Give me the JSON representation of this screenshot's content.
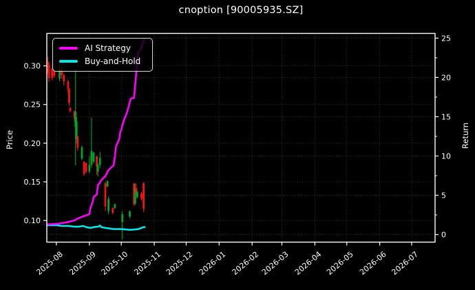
{
  "title": "cnoption [90005935.SZ]",
  "axes": {
    "ylabel_left": "Price",
    "ylabel_right": "Return",
    "x_tick_labels": [
      "2025-08",
      "2025-09",
      "2025-10",
      "2025-11",
      "2025-12",
      "2026-01",
      "2026-02",
      "2026-03",
      "2026-04",
      "2026-05",
      "2026-06",
      "2026-07"
    ],
    "price_tick_labels": [
      "0.30",
      "0.25",
      "0.20",
      "0.15",
      "0.10"
    ],
    "return_tick_labels": [
      "25",
      "20",
      "15",
      "10",
      "5",
      "0"
    ]
  },
  "legend": {
    "items": [
      {
        "label": "AI Strategy",
        "color": "#ff00ff"
      },
      {
        "label": "Buy-and-Hold",
        "color": "#00e8e8"
      }
    ]
  },
  "chart_data": {
    "type": "candlestick+line",
    "title": "cnoption [90005935.SZ]",
    "ylabel_left": "Price",
    "ylabel_right": "Return",
    "grid": "dotted",
    "legend_position": "upper-left",
    "xlim": [
      "2025-07-23",
      "2026-07-23"
    ],
    "x_ticks": [
      "2025-08-01",
      "2025-09-01",
      "2025-10-01",
      "2025-11-01",
      "2025-12-01",
      "2026-01-01",
      "2026-02-01",
      "2026-03-01",
      "2026-04-01",
      "2026-05-01",
      "2026-06-01",
      "2026-07-01"
    ],
    "price_ylim": [
      0.072,
      0.342
    ],
    "price_ticks": [
      0.3,
      0.25,
      0.2,
      0.15,
      0.1
    ],
    "return_ylim": [
      -0.96,
      25.6
    ],
    "return_ticks": [
      25,
      20,
      15,
      10,
      5,
      0
    ],
    "return_minor_tick_step": 2.5,
    "colors": {
      "background": "#000000",
      "text": "#ffffff",
      "grid": "#3a3a3a",
      "spine": "#ffffff",
      "candle_up": "#00a42a",
      "candle_down": "#f51414",
      "ai_strategy": "#ff00ff",
      "buy_and_hold": "#00e8e8"
    },
    "candles_ohlc": [
      [
        "2025-07-24",
        0.305,
        0.3115,
        0.289,
        0.2925
      ],
      [
        "2025-07-25",
        0.3015,
        0.305,
        0.279,
        0.284
      ],
      [
        "2025-07-28",
        0.2965,
        0.2965,
        0.281,
        0.2845
      ],
      [
        "2025-07-30",
        0.2935,
        0.295,
        0.2845,
        0.287
      ],
      [
        "2025-08-04",
        0.2835,
        0.308,
        0.28,
        0.2965
      ],
      [
        "2025-08-06",
        0.2955,
        0.299,
        0.2835,
        0.288
      ],
      [
        "2025-08-08",
        0.288,
        0.29,
        0.2745,
        0.28
      ],
      [
        "2025-08-12",
        0.28,
        0.282,
        0.265,
        0.27
      ],
      [
        "2025-08-13",
        0.27,
        0.271,
        0.248,
        0.252
      ],
      [
        "2025-08-14",
        0.246,
        0.246,
        0.24,
        0.2415
      ],
      [
        "2025-08-18",
        0.2415,
        0.242,
        0.228,
        0.232
      ],
      [
        "2025-08-19",
        0.2215,
        0.296,
        0.171,
        0.2405
      ],
      [
        "2025-08-20",
        0.2055,
        0.234,
        0.2,
        0.228
      ],
      [
        "2025-08-21",
        0.2085,
        0.21,
        0.19,
        0.194
      ],
      [
        "2025-08-25",
        0.18,
        0.197,
        0.178,
        0.195
      ],
      [
        "2025-08-27",
        0.176,
        0.177,
        0.158,
        0.16
      ],
      [
        "2025-08-29",
        0.1745,
        0.175,
        0.161,
        0.163
      ],
      [
        "2025-09-01",
        0.1635,
        0.183,
        0.161,
        0.172
      ],
      [
        "2025-09-03",
        0.172,
        0.233,
        0.168,
        0.19
      ],
      [
        "2025-09-05",
        0.176,
        0.1885,
        0.174,
        0.188
      ],
      [
        "2025-09-08",
        0.183,
        0.1835,
        0.159,
        0.17
      ],
      [
        "2025-09-09",
        0.163,
        0.174,
        0.157,
        0.172
      ],
      [
        "2025-09-11",
        0.172,
        0.1885,
        0.168,
        0.181
      ],
      [
        "2025-09-16",
        0.148,
        0.15,
        0.112,
        0.118
      ],
      [
        "2025-09-18",
        0.144,
        0.152,
        0.143,
        0.151
      ],
      [
        "2025-09-19",
        0.112,
        0.131,
        0.108,
        0.128
      ],
      [
        "2025-09-23",
        0.116,
        0.117,
        0.108,
        0.11
      ],
      [
        "2025-09-25",
        0.116,
        0.122,
        0.115,
        0.121
      ],
      [
        "2025-10-02",
        0.098,
        0.112,
        0.0755,
        0.108
      ],
      [
        "2025-10-09",
        0.105,
        0.113,
        0.103,
        0.112
      ],
      [
        "2025-10-13",
        0.148,
        0.148,
        0.119,
        0.121
      ],
      [
        "2025-10-14",
        0.122,
        0.1478,
        0.12,
        0.14
      ],
      [
        "2025-10-15",
        0.142,
        0.148,
        0.133,
        0.136
      ],
      [
        "2025-10-16",
        0.13,
        0.139,
        0.128,
        0.137
      ],
      [
        "2025-10-20",
        0.135,
        0.137,
        0.126,
        0.128
      ],
      [
        "2025-10-22",
        0.1485,
        0.149,
        0.1105,
        0.115
      ]
    ],
    "series": [
      {
        "name": "AI Strategy",
        "axis": "return",
        "color": "#ff00ff",
        "points": [
          [
            "2025-07-24",
            1.3
          ],
          [
            "2025-08-01",
            1.35
          ],
          [
            "2025-08-06",
            1.45
          ],
          [
            "2025-08-12",
            1.6
          ],
          [
            "2025-08-18",
            1.8
          ],
          [
            "2025-08-22",
            2.1
          ],
          [
            "2025-08-27",
            2.35
          ],
          [
            "2025-08-29",
            2.45
          ],
          [
            "2025-09-01",
            2.6
          ],
          [
            "2025-09-02",
            3.4
          ],
          [
            "2025-09-04",
            4.1
          ],
          [
            "2025-09-05",
            4.8
          ],
          [
            "2025-09-08",
            5.1
          ],
          [
            "2025-09-09",
            6.3
          ],
          [
            "2025-09-11",
            6.6
          ],
          [
            "2025-09-12",
            6.9
          ],
          [
            "2025-09-15",
            7.3
          ],
          [
            "2025-09-16",
            7.4
          ],
          [
            "2025-09-18",
            8.0
          ],
          [
            "2025-09-19",
            8.2
          ],
          [
            "2025-09-22",
            8.6
          ],
          [
            "2025-09-23",
            8.7
          ],
          [
            "2025-09-24",
            8.9
          ],
          [
            "2025-09-25",
            9.9
          ],
          [
            "2025-09-26",
            11.2
          ],
          [
            "2025-09-29",
            12.1
          ],
          [
            "2025-09-30",
            13.0
          ],
          [
            "2025-10-01",
            13.3
          ],
          [
            "2025-10-02",
            13.9
          ],
          [
            "2025-10-03",
            14.4
          ],
          [
            "2025-10-06",
            15.4
          ],
          [
            "2025-10-08",
            16.3
          ],
          [
            "2025-10-09",
            16.9
          ],
          [
            "2025-10-10",
            17.3
          ],
          [
            "2025-10-13",
            17.4
          ],
          [
            "2025-10-14",
            18.9
          ],
          [
            "2025-10-15",
            20.4
          ],
          [
            "2025-10-16",
            22.0
          ],
          [
            "2025-10-17",
            23.2
          ],
          [
            "2025-10-20",
            23.7
          ],
          [
            "2025-10-21",
            24.3
          ],
          [
            "2025-10-22",
            24.7
          ],
          [
            "2025-10-23",
            24.9
          ]
        ]
      },
      {
        "name": "Buy-and-Hold",
        "axis": "return",
        "color": "#00e8e8",
        "points": [
          [
            "2025-07-24",
            1.2
          ],
          [
            "2025-08-01",
            1.2
          ],
          [
            "2025-08-06",
            1.1
          ],
          [
            "2025-08-12",
            1.1
          ],
          [
            "2025-08-18",
            1.0
          ],
          [
            "2025-08-22",
            1.0
          ],
          [
            "2025-08-26",
            1.1
          ],
          [
            "2025-08-29",
            0.95
          ],
          [
            "2025-09-02",
            0.85
          ],
          [
            "2025-09-05",
            0.95
          ],
          [
            "2025-09-09",
            1.0
          ],
          [
            "2025-09-11",
            1.15
          ],
          [
            "2025-09-12",
            0.95
          ],
          [
            "2025-09-16",
            0.85
          ],
          [
            "2025-09-19",
            0.8
          ],
          [
            "2025-09-24",
            0.7
          ],
          [
            "2025-10-02",
            0.7
          ],
          [
            "2025-10-09",
            0.6
          ],
          [
            "2025-10-14",
            0.65
          ],
          [
            "2025-10-17",
            0.7
          ],
          [
            "2025-10-20",
            0.85
          ],
          [
            "2025-10-22",
            0.95
          ],
          [
            "2025-10-23",
            0.95
          ]
        ]
      }
    ]
  }
}
